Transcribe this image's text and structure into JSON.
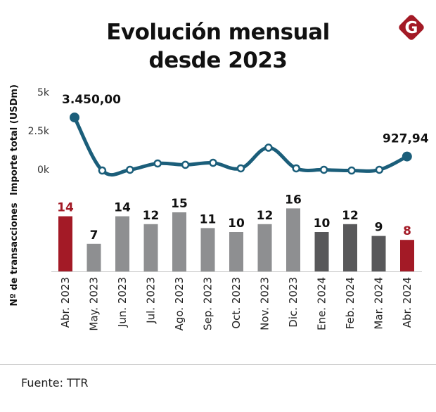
{
  "header": {
    "title_line1": "Evolución mensual",
    "title_line2": "desde 2023",
    "logo_letter": "G",
    "logo_icon": "brand-g-diamond-logo"
  },
  "colors": {
    "line": "#1b5e7a",
    "highlight_bar": "#a31a26",
    "bar_2023": "#8e8f91",
    "bar_2024": "#58585a",
    "text": "#111111"
  },
  "chart_data": [
    {
      "type": "line",
      "title": "Evolución mensual desde 2023",
      "ylabel": "Importe total (USDm)",
      "xlabel": "",
      "ylim": [
        0,
        5000
      ],
      "yticks": [
        0,
        2500,
        5000
      ],
      "ytick_labels": [
        "0k",
        "2.5k",
        "5k"
      ],
      "grid": false,
      "categories": [
        "Abr. 2023",
        "May. 2023",
        "Jun. 2023",
        "Jul. 2023",
        "Ago. 2023",
        "Sep. 2023",
        "Oct. 2023",
        "Nov. 2023",
        "Dic. 2023",
        "Ene. 2024",
        "Feb. 2024",
        "Mar. 2024",
        "Abr. 2024"
      ],
      "values": [
        3450.0,
        20,
        70,
        480,
        390,
        520,
        160,
        1500,
        160,
        70,
        20,
        70,
        927.94
      ],
      "annotations": [
        {
          "index": 0,
          "text": "3.450,00"
        },
        {
          "index": 12,
          "text": "927,94"
        }
      ]
    },
    {
      "type": "bar",
      "ylabel": "Nº de transacciones",
      "xlabel": "",
      "grid": false,
      "categories": [
        "Abr. 2023",
        "May. 2023",
        "Jun. 2023",
        "Jul. 2023",
        "Ago. 2023",
        "Sep. 2023",
        "Oct. 2023",
        "Nov. 2023",
        "Dic. 2023",
        "Ene. 2024",
        "Feb. 2024",
        "Mar. 2024",
        "Abr. 2024"
      ],
      "values": [
        14,
        7,
        14,
        12,
        15,
        11,
        10,
        12,
        16,
        10,
        12,
        9,
        8
      ],
      "bar_styles": [
        "highlight",
        "2023",
        "2023",
        "2023",
        "2023",
        "2023",
        "2023",
        "2023",
        "2023",
        "2024",
        "2024",
        "2024",
        "highlight"
      ]
    }
  ],
  "footer": {
    "source": "Fuente: TTR"
  }
}
